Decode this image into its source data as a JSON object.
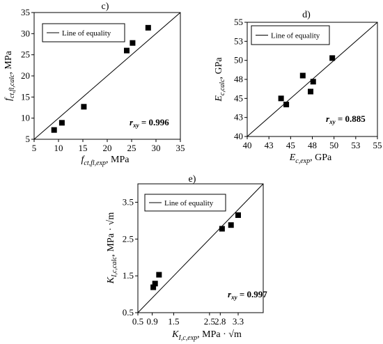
{
  "chart_data": [
    {
      "panel": "c)",
      "type": "scatter",
      "xlabel": "f_ct,fl,exp, MPa",
      "xlabel_parts": {
        "var": "f",
        "sub": "ct,fl,exp",
        "unit": ", MPa"
      },
      "ylabel": "f_ct,fl,calc, MPa",
      "ylabel_parts": {
        "var": "f",
        "sub": "ct,fl,calc",
        "unit": ", MPa"
      },
      "xlim": [
        5,
        35
      ],
      "ylim": [
        5,
        35
      ],
      "xticks": [
        "5",
        "10",
        "15",
        "20",
        "25",
        "30",
        "35"
      ],
      "xtick_values": [
        5,
        10,
        15,
        20,
        25,
        30,
        35
      ],
      "yticks": [
        "5",
        "10",
        "15",
        "20",
        "25",
        "30",
        "35"
      ],
      "ytick_values": [
        5,
        10,
        15,
        20,
        25,
        30,
        35
      ],
      "legend": "Line of equality",
      "legend_position": "top-left",
      "annotation": {
        "label": "r",
        "sub": "xy",
        "value": " = 0.996"
      },
      "grid": false,
      "points": [
        {
          "x": 9.1,
          "y": 7.2
        },
        {
          "x": 10.7,
          "y": 8.9
        },
        {
          "x": 15.2,
          "y": 12.7
        },
        {
          "x": 24.0,
          "y": 26.0
        },
        {
          "x": 25.2,
          "y": 27.8
        },
        {
          "x": 28.4,
          "y": 31.4
        }
      ]
    },
    {
      "panel": "d)",
      "type": "scatter",
      "xlabel": "E_c,exp, GPa",
      "xlabel_parts": {
        "var": "E",
        "sub": "c,exp",
        "unit": ", GPa"
      },
      "ylabel": "E_c,calc, GPa",
      "ylabel_parts": {
        "var": "E",
        "sub": "c,calc",
        "unit": ", GPa"
      },
      "xlim": [
        40,
        55
      ],
      "ylim": [
        40,
        55
      ],
      "xticks": [
        "40",
        "43",
        "45",
        "48",
        "50",
        "53",
        "55"
      ],
      "xtick_values": [
        40,
        42.5,
        45,
        47.5,
        50,
        52.5,
        55
      ],
      "yticks": [
        "40",
        "43",
        "45",
        "48",
        "50",
        "53",
        "55"
      ],
      "ytick_values": [
        40,
        42.5,
        45,
        47.5,
        50,
        52.5,
        55
      ],
      "legend": "Line of equality",
      "legend_position": "top-left",
      "annotation": {
        "label": "r",
        "sub": "xy",
        "value": " = 0.885"
      },
      "grid": false,
      "points": [
        {
          "x": 43.9,
          "y": 45.0
        },
        {
          "x": 44.5,
          "y": 44.2
        },
        {
          "x": 46.4,
          "y": 48.0
        },
        {
          "x": 47.3,
          "y": 45.9
        },
        {
          "x": 47.6,
          "y": 47.2
        },
        {
          "x": 49.8,
          "y": 50.3
        }
      ]
    },
    {
      "panel": "e)",
      "type": "scatter",
      "xlabel": "K_I,c,exp, MPa · √m",
      "xlabel_parts": {
        "var": "K",
        "sub": "I,c,exp",
        "unit": ", MPa · √m"
      },
      "ylabel": "K_I,c,calc, MPa · √m",
      "ylabel_parts": {
        "var": "K",
        "sub": "I,c,calc",
        "unit": ", MPa · √m"
      },
      "xlim": [
        0.5,
        4.0
      ],
      "ylim": [
        0.5,
        4.0
      ],
      "xticks": [
        "0.5",
        "0.9",
        "1.5",
        "2.5",
        "2.8",
        "3.3"
      ],
      "xtick_values": [
        0.5,
        0.9,
        1.5,
        2.5,
        2.8,
        3.3
      ],
      "yticks": [
        "0.5",
        "1.5",
        "2.5",
        "3.5"
      ],
      "ytick_values": [
        0.5,
        1.5,
        2.5,
        3.5
      ],
      "legend": "Line of equality",
      "legend_position": "top-left",
      "annotation": {
        "label": "r",
        "sub": "xy",
        "value": " = 0.997"
      },
      "grid": false,
      "points": [
        {
          "x": 0.93,
          "y": 1.19
        },
        {
          "x": 0.98,
          "y": 1.29
        },
        {
          "x": 1.09,
          "y": 1.53
        },
        {
          "x": 2.85,
          "y": 2.78
        },
        {
          "x": 3.1,
          "y": 2.88
        },
        {
          "x": 3.3,
          "y": 3.15
        }
      ]
    }
  ]
}
